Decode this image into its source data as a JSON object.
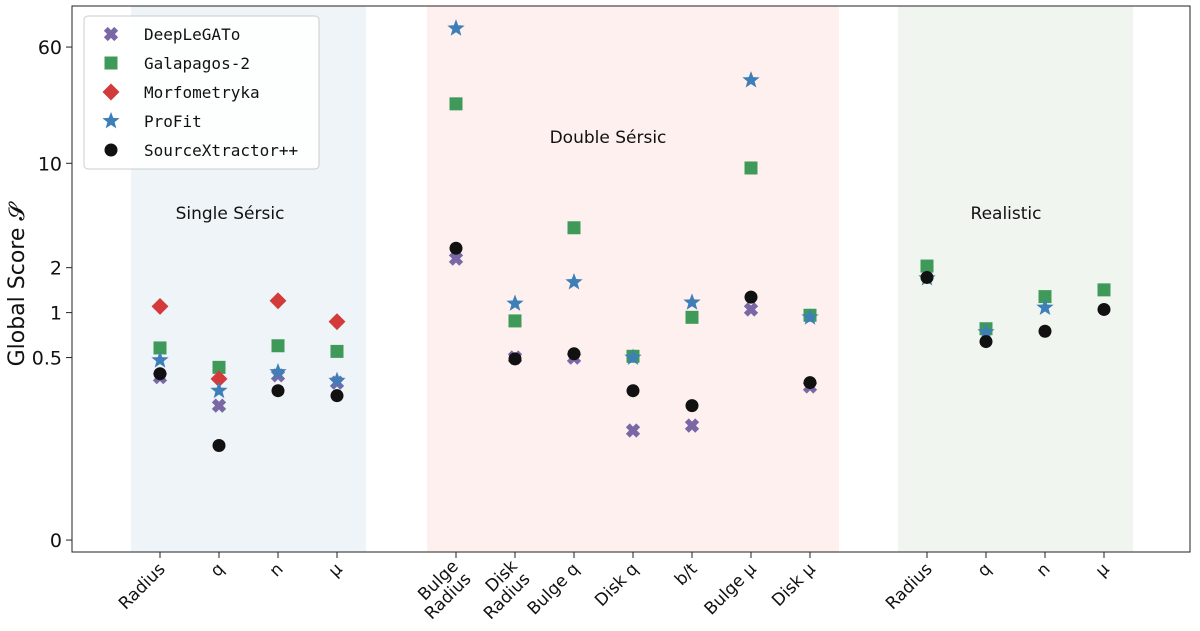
{
  "chart_data": {
    "type": "scatter",
    "title": "",
    "xlabel": "",
    "ylabel": "Global Score 𝓢",
    "yscale": "symlog",
    "y_ticks": [
      0,
      0.5,
      1,
      2,
      10,
      60
    ],
    "y_tick_labels": [
      "0",
      "0.5",
      "1",
      "2",
      "10",
      "60"
    ],
    "ylim": [
      -0.05,
      85
    ],
    "grid": false,
    "legend_position": "top-left",
    "regions": [
      {
        "name": "Single Sérsic",
        "color": "#eef4f8",
        "categories": [
          "Radius",
          "q",
          "n",
          "μ"
        ]
      },
      {
        "name": "Double Sérsic",
        "color": "#fdf0ef",
        "categories": [
          "Bulge\nRadius",
          "Disk\nRadius",
          "Bulge q",
          "Disk q",
          "b/t",
          "Bulge μ",
          "Disk μ"
        ]
      },
      {
        "name": "Realistic",
        "color": "#f1f5ef",
        "categories": [
          "Radius",
          "q",
          "n",
          "μ"
        ]
      }
    ],
    "categories": [
      "Radius",
      "q",
      "n",
      "μ",
      "Bulge\nRadius",
      "Disk\nRadius",
      "Bulge q",
      "Disk q",
      "b/t",
      "Bulge μ",
      "Disk μ",
      "Radius",
      "q",
      "n",
      "μ"
    ],
    "series": [
      {
        "name": "DeepLeGATo",
        "marker": "x",
        "color": "#7a68a6",
        "values": [
          0.37,
          0.27,
          0.38,
          0.34,
          2.3,
          0.5,
          0.5,
          0.22,
          0.23,
          1.05,
          0.32,
          null,
          null,
          null,
          null
        ]
      },
      {
        "name": "Galapagos-2",
        "marker": "square",
        "color": "#3f9a5a",
        "values": [
          0.58,
          0.43,
          0.6,
          0.55,
          25,
          0.88,
          3.7,
          0.51,
          0.93,
          9.3,
          0.96,
          2.05,
          0.78,
          1.28,
          1.42
        ]
      },
      {
        "name": "Morfometryka",
        "marker": "diamond",
        "color": "#d33b3a",
        "values": [
          1.1,
          0.36,
          1.2,
          0.87,
          null,
          null,
          null,
          null,
          null,
          null,
          null,
          null,
          null,
          null,
          null
        ]
      },
      {
        "name": "ProFit",
        "marker": "star",
        "color": "#3e7fb8",
        "values": [
          0.48,
          0.3,
          0.4,
          0.35,
          80,
          1.15,
          1.6,
          0.5,
          1.17,
          36,
          0.93,
          1.7,
          0.74,
          1.08,
          null
        ]
      },
      {
        "name": "SourceXtractor++",
        "marker": "circle",
        "color": "#111111",
        "values": [
          0.39,
          0.19,
          0.3,
          0.29,
          2.7,
          0.49,
          0.53,
          0.3,
          0.27,
          1.27,
          0.34,
          1.72,
          0.64,
          0.75,
          1.05
        ]
      }
    ]
  }
}
